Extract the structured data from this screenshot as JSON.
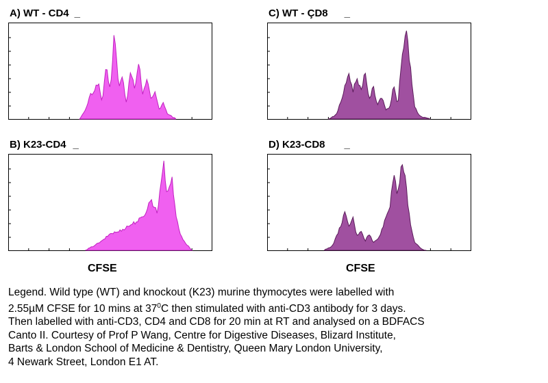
{
  "chart_data": [
    {
      "type": "area",
      "panel": "A",
      "title": "A) WT - CD4",
      "color": "#f060f0",
      "stroke": "#c020c0",
      "x": [
        0.35,
        0.38,
        0.4,
        0.42,
        0.44,
        0.46,
        0.48,
        0.5,
        0.52,
        0.54,
        0.56,
        0.58,
        0.6,
        0.62,
        0.64,
        0.66,
        0.68,
        0.7,
        0.72,
        0.74,
        0.76,
        0.78,
        0.8,
        0.82
      ],
      "y": [
        0.0,
        0.1,
        0.25,
        0.3,
        0.4,
        0.18,
        0.55,
        0.3,
        0.95,
        0.35,
        0.45,
        0.15,
        0.55,
        0.3,
        0.6,
        0.25,
        0.45,
        0.2,
        0.3,
        0.1,
        0.18,
        0.05,
        0.03,
        0.0
      ]
    },
    {
      "type": "area",
      "panel": "B",
      "title": "B) K23-CD4",
      "color": "#f060f0",
      "stroke": "#c020c0",
      "x": [
        0.38,
        0.42,
        0.46,
        0.5,
        0.54,
        0.58,
        0.62,
        0.66,
        0.7,
        0.73,
        0.76,
        0.78,
        0.8,
        0.82,
        0.84,
        0.86,
        0.88,
        0.9
      ],
      "y": [
        0.0,
        0.05,
        0.1,
        0.18,
        0.2,
        0.25,
        0.3,
        0.35,
        0.55,
        0.4,
        0.95,
        0.6,
        0.8,
        0.4,
        0.2,
        0.1,
        0.05,
        0.0
      ]
    },
    {
      "type": "area",
      "panel": "C",
      "title": "C) WT - ÇD8",
      "color": "#a050a0",
      "stroke": "#5a1a5a",
      "x": [
        0.3,
        0.34,
        0.37,
        0.4,
        0.42,
        0.44,
        0.46,
        0.48,
        0.5,
        0.52,
        0.54,
        0.56,
        0.58,
        0.6,
        0.62,
        0.64,
        0.66,
        0.68,
        0.7,
        0.72,
        0.74,
        0.76,
        0.78,
        0.8
      ],
      "y": [
        0.0,
        0.05,
        0.25,
        0.5,
        0.3,
        0.45,
        0.3,
        0.52,
        0.2,
        0.35,
        0.15,
        0.25,
        0.1,
        0.12,
        0.35,
        0.15,
        0.65,
        0.98,
        0.6,
        0.15,
        0.05,
        0.02,
        0.01,
        0.0
      ]
    },
    {
      "type": "area",
      "panel": "D",
      "title": "D) K23-CD8",
      "color": "#a050a0",
      "stroke": "#5a1a5a",
      "x": [
        0.28,
        0.32,
        0.35,
        0.38,
        0.4,
        0.42,
        0.44,
        0.46,
        0.48,
        0.5,
        0.52,
        0.54,
        0.56,
        0.58,
        0.6,
        0.62,
        0.64,
        0.66,
        0.68,
        0.7,
        0.72,
        0.74,
        0.76,
        0.78
      ],
      "y": [
        0.0,
        0.05,
        0.2,
        0.4,
        0.25,
        0.35,
        0.15,
        0.22,
        0.1,
        0.18,
        0.08,
        0.12,
        0.2,
        0.35,
        0.45,
        0.85,
        0.6,
        0.98,
        0.7,
        0.3,
        0.1,
        0.05,
        0.01,
        0.0
      ]
    }
  ],
  "xlabel_left": "CFSE",
  "xlabel_right": "CFSE",
  "tick_glyph": "_",
  "legend": {
    "line1": "Legend. Wild type (WT) and knockout (K23) murine thymocytes were labelled with",
    "line2a": "2.55µM CFSE for 10 mins at 37",
    "line2sup": "0",
    "line2b": "C then stimulated with anti-CD3 antibody for 3 days.",
    "line3": "Then labelled with anti-CD3, CD4 and CD8 for 20 min at RT and analysed on a BDFACS",
    "line4": "Canto II. Courtesy of Prof  P Wang, Centre for Digestive Diseases, Blizard Institute,",
    "line5": "Barts & London School of Medicine & Dentistry, Queen Mary London University,",
    "line6": "4 Newark Street, London E1 AT."
  }
}
